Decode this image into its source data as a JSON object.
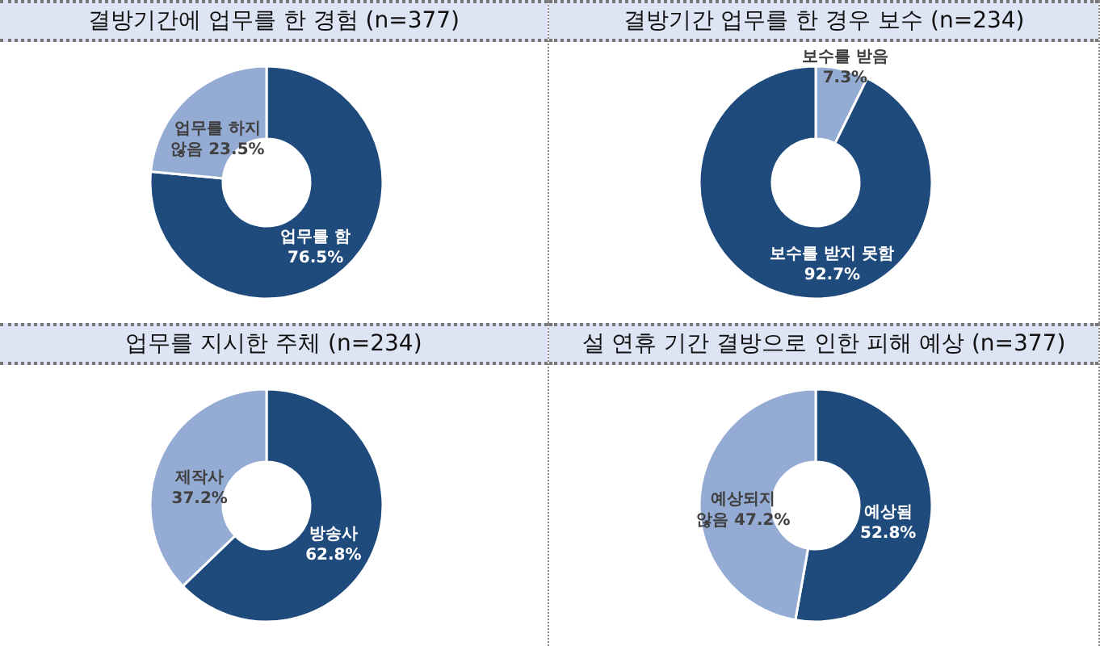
{
  "chart_data": [
    {
      "type": "donut",
      "title": "결방기간에 업무를 한 경험 (n=377)",
      "categories": [
        "업무를 함",
        "업무를 하지 않음"
      ],
      "values": [
        76.5,
        23.5
      ],
      "colors": [
        "#1f4a7c",
        "#94abd4"
      ],
      "value_labels": [
        "76.5%",
        "23.5%"
      ]
    },
    {
      "type": "donut",
      "title": "결방기간 업무를 한 경우 보수 (n=234)",
      "categories": [
        "보수를 받음",
        "보수를 받지 못함"
      ],
      "values": [
        7.3,
        92.7
      ],
      "colors": [
        "#94abd4",
        "#1f4a7c"
      ],
      "value_labels": [
        "7.3%",
        "92.7%"
      ]
    },
    {
      "type": "donut",
      "title": "업무를 지시한 주체 (n=234)",
      "categories": [
        "방송사",
        "제작사"
      ],
      "values": [
        62.8,
        37.2
      ],
      "colors": [
        "#1f4a7c",
        "#94abd4"
      ],
      "value_labels": [
        "62.8%",
        "37.2%"
      ]
    },
    {
      "type": "donut",
      "title": "설 연휴 기간 결방으로 인한 피해 예상 (n=377)",
      "categories": [
        "예상됨",
        "예상되지 않음"
      ],
      "values": [
        52.8,
        47.2
      ],
      "colors": [
        "#1f4a7c",
        "#94abd4"
      ],
      "value_labels": [
        "52.8%",
        "47.2%"
      ]
    }
  ]
}
